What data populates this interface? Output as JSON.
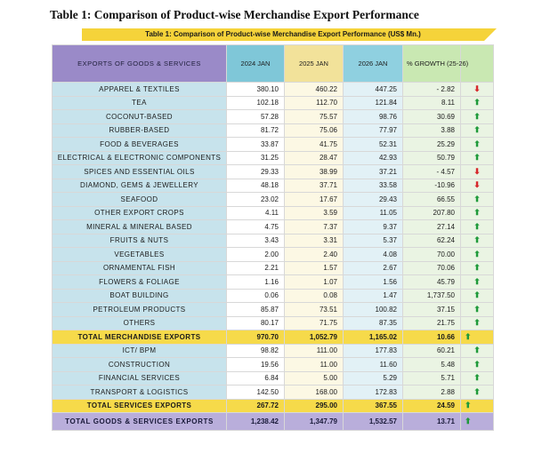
{
  "title": "Table 1: Comparison of Product-wise Merchandise Export Performance",
  "banner": "Table 1: Comparison of Product-wise Merchandise Export Performance (US$ Mn.)",
  "headers": {
    "name": "EXPORTS OF GOODS & SERVICES",
    "y2024": "2024 JAN",
    "y2025": "2025 JAN",
    "y2026": "2026 JAN",
    "growth": "% GROWTH (25-26)"
  },
  "rows": [
    {
      "name": "APPAREL & TEXTILES",
      "y2024": "380.10",
      "y2025": "460.22",
      "y2026": "447.25",
      "growth": "- 2.82",
      "trend": "down",
      "kind": "row"
    },
    {
      "name": "TEA",
      "y2024": "102.18",
      "y2025": "112.70",
      "y2026": "121.84",
      "growth": "8.11",
      "trend": "up",
      "kind": "row"
    },
    {
      "name": "COCONUT-BASED",
      "y2024": "57.28",
      "y2025": "75.57",
      "y2026": "98.76",
      "growth": "30.69",
      "trend": "up",
      "kind": "row"
    },
    {
      "name": "RUBBER-BASED",
      "y2024": "81.72",
      "y2025": "75.06",
      "y2026": "77.97",
      "growth": "3.88",
      "trend": "up",
      "kind": "row"
    },
    {
      "name": "FOOD & BEVERAGES",
      "y2024": "33.87",
      "y2025": "41.75",
      "y2026": "52.31",
      "growth": "25.29",
      "trend": "up",
      "kind": "row"
    },
    {
      "name": "ELECTRICAL & ELECTRONIC COMPONENTS",
      "y2024": "31.25",
      "y2025": "28.47",
      "y2026": "42.93",
      "growth": "50.79",
      "trend": "up",
      "kind": "row"
    },
    {
      "name": "SPICES AND ESSENTIAL OILS",
      "y2024": "29.33",
      "y2025": "38.99",
      "y2026": "37.21",
      "growth": "- 4.57",
      "trend": "down",
      "kind": "row"
    },
    {
      "name": "DIAMOND, GEMS & JEWELLERY",
      "y2024": "48.18",
      "y2025": "37.71",
      "y2026": "33.58",
      "growth": "-10.96",
      "trend": "down",
      "kind": "row"
    },
    {
      "name": "SEAFOOD",
      "y2024": "23.02",
      "y2025": "17.67",
      "y2026": "29.43",
      "growth": "66.55",
      "trend": "up",
      "kind": "row"
    },
    {
      "name": "OTHER EXPORT CROPS",
      "y2024": "4.11",
      "y2025": "3.59",
      "y2026": "11.05",
      "growth": "207.80",
      "trend": "up",
      "kind": "row"
    },
    {
      "name": "MINERAL & MINERAL BASED",
      "y2024": "4.75",
      "y2025": "7.37",
      "y2026": "9.37",
      "growth": "27.14",
      "trend": "up",
      "kind": "row"
    },
    {
      "name": "FRUITS & NUTS",
      "y2024": "3.43",
      "y2025": "3.31",
      "y2026": "5.37",
      "growth": "62.24",
      "trend": "up",
      "kind": "row"
    },
    {
      "name": "VEGETABLES",
      "y2024": "2.00",
      "y2025": "2.40",
      "y2026": "4.08",
      "growth": "70.00",
      "trend": "up",
      "kind": "row"
    },
    {
      "name": "ORNAMENTAL FISH",
      "y2024": "2.21",
      "y2025": "1.57",
      "y2026": "2.67",
      "growth": "70.06",
      "trend": "up",
      "kind": "row"
    },
    {
      "name": "FLOWERS & FOLIAGE",
      "y2024": "1.16",
      "y2025": "1.07",
      "y2026": "1.56",
      "growth": "45.79",
      "trend": "up",
      "kind": "row"
    },
    {
      "name": "BOAT BUILDING",
      "y2024": "0.06",
      "y2025": "0.08",
      "y2026": "1.47",
      "growth": "1,737.50",
      "trend": "up",
      "kind": "row"
    },
    {
      "name": "PETROLEUM PRODUCTS",
      "y2024": "85.87",
      "y2025": "73.51",
      "y2026": "100.82",
      "growth": "37.15",
      "trend": "up",
      "kind": "row"
    },
    {
      "name": "OTHERS",
      "y2024": "80.17",
      "y2025": "71.75",
      "y2026": "87.35",
      "growth": "21.75",
      "trend": "up",
      "kind": "row"
    },
    {
      "name": "TOTAL MERCHANDISE EXPORTS",
      "y2024": "970.70",
      "y2025": "1,052.79",
      "y2026": "1,165.02",
      "growth": "10.66",
      "trend": "up",
      "kind": "total"
    },
    {
      "name": "ICT/ BPM",
      "y2024": "98.82",
      "y2025": "111.00",
      "y2026": "177.83",
      "growth": "60.21",
      "trend": "up",
      "kind": "row"
    },
    {
      "name": "CONSTRUCTION",
      "y2024": "19.56",
      "y2025": "11.00",
      "y2026": "11.60",
      "growth": "5.48",
      "trend": "up",
      "kind": "row"
    },
    {
      "name": "FINANCIAL SERVICES",
      "y2024": "6.84",
      "y2025": "5.00",
      "y2026": "5.29",
      "growth": "5.71",
      "trend": "up",
      "kind": "row"
    },
    {
      "name": "TRANSPORT & LOGISTICS",
      "y2024": "142.50",
      "y2025": "168.00",
      "y2026": "172.83",
      "growth": "2.88",
      "trend": "up",
      "kind": "row"
    },
    {
      "name": "TOTAL SERVICES EXPORTS",
      "y2024": "267.72",
      "y2025": "295.00",
      "y2026": "367.55",
      "growth": "24.59",
      "trend": "up",
      "kind": "total"
    },
    {
      "name": "TOTAL GOODS & SERVICES EXPORTS",
      "y2024": "1,238.42",
      "y2025": "1,347.79",
      "y2026": "1,532.57",
      "growth": "13.71",
      "trend": "up",
      "kind": "grand"
    }
  ],
  "colors": {
    "up": "#1f9a3a",
    "down": "#d6282c",
    "total_bg": "#f6da4a",
    "grand_bg": "#b9aedb"
  }
}
